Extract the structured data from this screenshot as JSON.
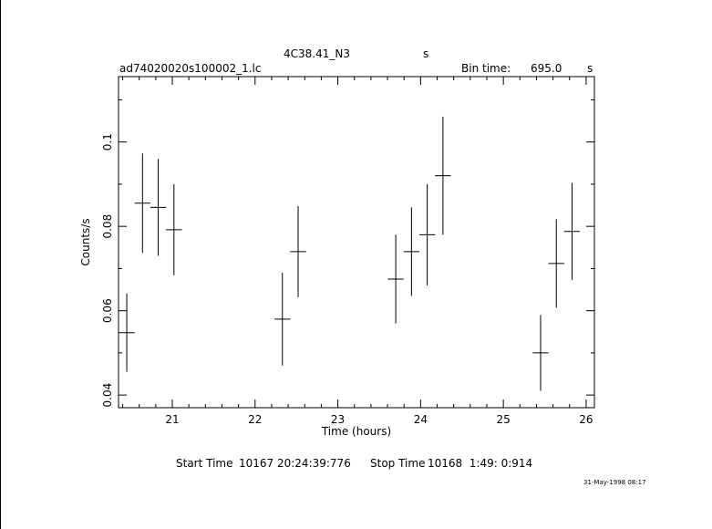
{
  "header": {
    "object_name": "4C38.41_N3",
    "object_suffix": "s",
    "file_name": "ad74020020s100002_1.lc",
    "bin_time_label": "Bin time:",
    "bin_time_value": "695.0",
    "bin_time_unit": "s"
  },
  "footer": {
    "start_label": "Start Time",
    "start_value": "10167 20:24:39:776",
    "stop_label": "Stop Time",
    "stop_value": "10168  1:49: 0:914",
    "date_stamp": "31-May-1998 08:17"
  },
  "chart_data": {
    "type": "scatter",
    "xlabel": "Time (hours)",
    "ylabel": "Counts/s",
    "xlim": [
      20.35,
      26.1
    ],
    "ylim": [
      0.037,
      0.1155
    ],
    "x_ticks": [
      21,
      22,
      23,
      24,
      25,
      26
    ],
    "y_ticks": [
      0.04,
      0.06,
      0.08,
      0.1
    ],
    "y_tick_labels": [
      "0.04",
      "0.06",
      "0.08",
      "0.1"
    ],
    "points": [
      {
        "x": 20.45,
        "xerr": 0.096,
        "y": 0.0548,
        "yerr": 0.0093
      },
      {
        "x": 20.64,
        "xerr": 0.096,
        "y": 0.0855,
        "yerr": 0.0118
      },
      {
        "x": 20.83,
        "xerr": 0.096,
        "y": 0.0845,
        "yerr": 0.0115
      },
      {
        "x": 21.02,
        "xerr": 0.096,
        "y": 0.0792,
        "yerr": 0.0108
      },
      {
        "x": 22.33,
        "xerr": 0.096,
        "y": 0.058,
        "yerr": 0.011
      },
      {
        "x": 22.52,
        "xerr": 0.096,
        "y": 0.074,
        "yerr": 0.0108
      },
      {
        "x": 23.7,
        "xerr": 0.096,
        "y": 0.0675,
        "yerr": 0.0105
      },
      {
        "x": 23.89,
        "xerr": 0.096,
        "y": 0.074,
        "yerr": 0.0105
      },
      {
        "x": 24.08,
        "xerr": 0.096,
        "y": 0.078,
        "yerr": 0.012
      },
      {
        "x": 24.27,
        "xerr": 0.096,
        "y": 0.092,
        "yerr": 0.014
      },
      {
        "x": 25.45,
        "xerr": 0.096,
        "y": 0.05,
        "yerr": 0.009
      },
      {
        "x": 25.64,
        "xerr": 0.096,
        "y": 0.0712,
        "yerr": 0.0105
      },
      {
        "x": 25.83,
        "xerr": 0.096,
        "y": 0.0788,
        "yerr": 0.0115
      }
    ]
  }
}
